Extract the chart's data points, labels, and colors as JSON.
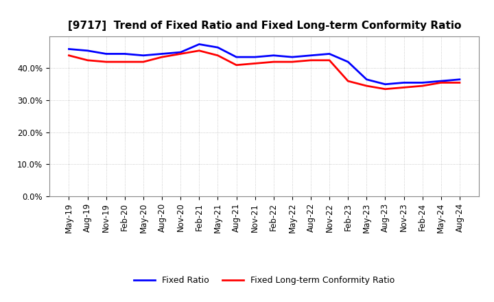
{
  "title": "[9717]  Trend of Fixed Ratio and Fixed Long-term Conformity Ratio",
  "x_labels": [
    "May-19",
    "Aug-19",
    "Nov-19",
    "Feb-20",
    "May-20",
    "Aug-20",
    "Nov-20",
    "Feb-21",
    "May-21",
    "Aug-21",
    "Nov-21",
    "Feb-22",
    "May-22",
    "Aug-22",
    "Nov-22",
    "Feb-23",
    "May-23",
    "Aug-23",
    "Nov-23",
    "Feb-24",
    "May-24",
    "Aug-24"
  ],
  "fixed_ratio": [
    46.0,
    45.5,
    44.5,
    44.5,
    44.0,
    44.5,
    45.0,
    47.5,
    46.5,
    43.5,
    43.5,
    44.0,
    43.5,
    44.0,
    44.5,
    42.0,
    36.5,
    35.0,
    35.5,
    35.5,
    36.0,
    36.5
  ],
  "fixed_lt_ratio": [
    44.0,
    42.5,
    42.0,
    42.0,
    42.0,
    43.5,
    44.5,
    45.5,
    44.0,
    41.0,
    41.5,
    42.0,
    42.0,
    42.5,
    42.5,
    36.0,
    34.5,
    33.5,
    34.0,
    34.5,
    35.5,
    35.5
  ],
  "fixed_ratio_color": "#0000FF",
  "fixed_lt_ratio_color": "#FF0000",
  "ylim": [
    0,
    50
  ],
  "yticks": [
    0.0,
    10.0,
    20.0,
    30.0,
    40.0
  ],
  "background_color": "#FFFFFF",
  "grid_color": "#AAAAAA",
  "title_fontsize": 11,
  "tick_fontsize": 8.5,
  "legend_fixed": "Fixed Ratio",
  "legend_lt": "Fixed Long-term Conformity Ratio",
  "linewidth": 2.0
}
